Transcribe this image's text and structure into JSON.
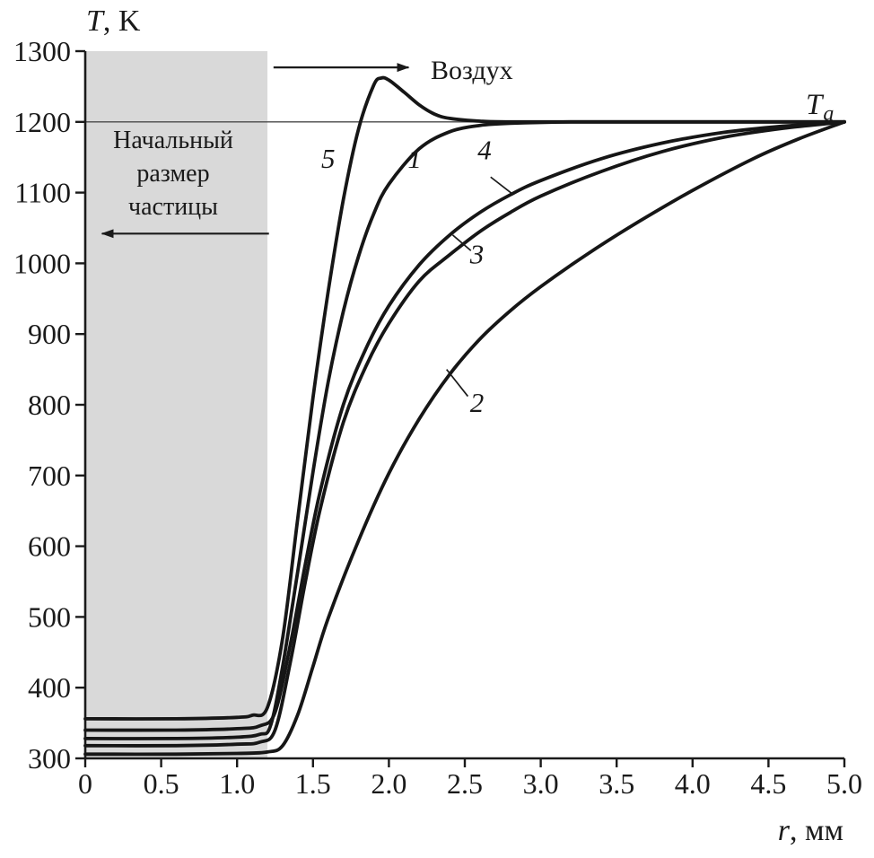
{
  "figure": {
    "background": "#ffffff",
    "ink": "#1a1a1a",
    "region_fill": "#d9d9d9",
    "axis_title_y": {
      "italic": "T",
      "rest": ", K"
    },
    "axis_title_x": {
      "italic": "r",
      "rest": ", мм"
    },
    "ambient_label": {
      "main": "T",
      "sub": "a"
    },
    "air_label": "Воздух",
    "region_label_lines": [
      "Начальный",
      "размер",
      "частицы"
    ]
  },
  "chart_data": {
    "type": "line",
    "title": "",
    "xlabel": "r, мм",
    "ylabel": "T, K",
    "xlim": [
      0,
      5.0
    ],
    "ylim": [
      300,
      1300
    ],
    "grid": false,
    "legend_position": "none (curves labeled inline 1-5)",
    "ambient_temperature_K": 1200,
    "xticks": {
      "values": [
        0,
        0.5,
        1.0,
        1.5,
        2.0,
        2.5,
        3.0,
        3.5,
        4.0,
        4.5,
        5.0
      ],
      "labels": [
        "0",
        "0.5",
        "1.0",
        "1.5",
        "2.0",
        "2.5",
        "3.0",
        "3.5",
        "4.0",
        "4.5",
        "5.0"
      ]
    },
    "yticks": {
      "values": [
        300,
        400,
        500,
        600,
        700,
        800,
        900,
        1000,
        1100,
        1200,
        1300
      ],
      "labels": [
        "300",
        "400",
        "500",
        "600",
        "700",
        "800",
        "900",
        "1000",
        "1100",
        "1200",
        "1300"
      ]
    },
    "shaded_region": {
      "x0": 0,
      "x1": 1.2,
      "label": "Начальный размер частицы"
    },
    "annotations": {
      "air_arrow": {
        "from": [
          1.24,
          1277
        ],
        "to": [
          2.13,
          1277
        ]
      },
      "region_arrow": {
        "from": [
          1.21,
          1042
        ],
        "to": [
          0.11,
          1042
        ]
      }
    },
    "series": [
      {
        "name": "1",
        "points": [
          [
            0,
            328
          ],
          [
            0.6,
            328
          ],
          [
            1.0,
            330
          ],
          [
            1.15,
            334
          ],
          [
            1.22,
            346
          ],
          [
            1.3,
            430
          ],
          [
            1.4,
            565
          ],
          [
            1.5,
            705
          ],
          [
            1.6,
            832
          ],
          [
            1.7,
            932
          ],
          [
            1.8,
            1010
          ],
          [
            1.9,
            1070
          ],
          [
            2.0,
            1112
          ],
          [
            2.2,
            1162
          ],
          [
            2.4,
            1186
          ],
          [
            2.6,
            1195
          ],
          [
            2.8,
            1198
          ],
          [
            3.2,
            1200
          ],
          [
            4.0,
            1200
          ],
          [
            5.0,
            1200
          ]
        ]
      },
      {
        "name": "2",
        "points": [
          [
            0,
            306
          ],
          [
            0.6,
            306
          ],
          [
            1.0,
            307
          ],
          [
            1.2,
            309
          ],
          [
            1.3,
            318
          ],
          [
            1.4,
            362
          ],
          [
            1.5,
            430
          ],
          [
            1.6,
            498
          ],
          [
            1.8,
            608
          ],
          [
            2.0,
            703
          ],
          [
            2.2,
            780
          ],
          [
            2.4,
            843
          ],
          [
            2.6,
            893
          ],
          [
            2.8,
            933
          ],
          [
            3.0,
            967
          ],
          [
            3.3,
            1012
          ],
          [
            3.6,
            1053
          ],
          [
            4.0,
            1103
          ],
          [
            4.4,
            1148
          ],
          [
            4.7,
            1176
          ],
          [
            5.0,
            1200
          ]
        ]
      },
      {
        "name": "3",
        "points": [
          [
            0,
            318
          ],
          [
            0.6,
            318
          ],
          [
            1.0,
            320
          ],
          [
            1.15,
            323
          ],
          [
            1.25,
            340
          ],
          [
            1.35,
            435
          ],
          [
            1.45,
            550
          ],
          [
            1.55,
            655
          ],
          [
            1.7,
            775
          ],
          [
            1.85,
            855
          ],
          [
            2.0,
            915
          ],
          [
            2.2,
            975
          ],
          [
            2.4,
            1012
          ],
          [
            2.6,
            1045
          ],
          [
            2.8,
            1072
          ],
          [
            3.0,
            1095
          ],
          [
            3.4,
            1130
          ],
          [
            3.8,
            1158
          ],
          [
            4.2,
            1178
          ],
          [
            4.6,
            1191
          ],
          [
            5.0,
            1200
          ]
        ]
      },
      {
        "name": "4",
        "points": [
          [
            0,
            340
          ],
          [
            0.6,
            340
          ],
          [
            1.0,
            342
          ],
          [
            1.15,
            346
          ],
          [
            1.25,
            365
          ],
          [
            1.35,
            460
          ],
          [
            1.45,
            575
          ],
          [
            1.55,
            680
          ],
          [
            1.7,
            800
          ],
          [
            1.85,
            880
          ],
          [
            2.0,
            940
          ],
          [
            2.2,
            998
          ],
          [
            2.4,
            1040
          ],
          [
            2.6,
            1072
          ],
          [
            2.8,
            1097
          ],
          [
            3.0,
            1117
          ],
          [
            3.4,
            1148
          ],
          [
            3.8,
            1170
          ],
          [
            4.2,
            1185
          ],
          [
            4.6,
            1194
          ],
          [
            5.0,
            1200
          ]
        ]
      },
      {
        "name": "5",
        "points": [
          [
            0,
            356
          ],
          [
            0.6,
            356
          ],
          [
            1.0,
            358
          ],
          [
            1.1,
            361
          ],
          [
            1.2,
            372
          ],
          [
            1.3,
            470
          ],
          [
            1.4,
            640
          ],
          [
            1.5,
            810
          ],
          [
            1.6,
            960
          ],
          [
            1.7,
            1090
          ],
          [
            1.8,
            1190
          ],
          [
            1.9,
            1252
          ],
          [
            1.95,
            1262
          ],
          [
            2.0,
            1259
          ],
          [
            2.1,
            1242
          ],
          [
            2.2,
            1224
          ],
          [
            2.3,
            1211
          ],
          [
            2.4,
            1205
          ],
          [
            2.6,
            1201
          ],
          [
            2.8,
            1200
          ],
          [
            3.5,
            1200
          ],
          [
            5.0,
            1200
          ]
        ]
      }
    ],
    "series_labels": [
      {
        "text": "5",
        "pos": [
          1.6,
          1135
        ],
        "leader": null
      },
      {
        "text": "1",
        "pos": [
          2.17,
          1135
        ],
        "leader": null
      },
      {
        "text": "4",
        "pos": [
          2.63,
          1147
        ],
        "leader": [
          [
            2.67,
            1122
          ],
          [
            2.82,
            1097
          ]
        ]
      },
      {
        "text": "3",
        "pos": [
          2.58,
          1000
        ],
        "leader": [
          [
            2.54,
            1018
          ],
          [
            2.42,
            1040
          ]
        ]
      },
      {
        "text": "2",
        "pos": [
          2.58,
          790
        ],
        "leader": [
          [
            2.52,
            812
          ],
          [
            2.38,
            850
          ]
        ]
      }
    ]
  }
}
